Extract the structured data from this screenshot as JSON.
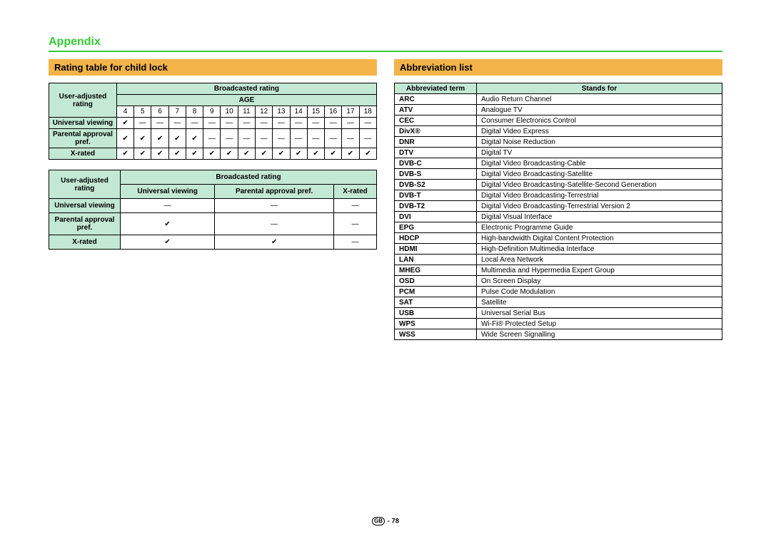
{
  "colors": {
    "accent_green": "#33cc33",
    "header_orange": "#f4b44a",
    "table_green": "#c3e8d3",
    "border": "#000000",
    "background": "#ffffff"
  },
  "appendix_title": "Appendix",
  "section_rating_title": "Rating table for child lock",
  "section_abbr_title": "Abbreviation list",
  "rating_table_age": {
    "user_adjusted_label": "User-adjusted rating",
    "broadcasted_label": "Broadcasted rating",
    "age_label": "AGE",
    "ages": [
      "4",
      "5",
      "6",
      "7",
      "8",
      "9",
      "10",
      "11",
      "12",
      "13",
      "14",
      "15",
      "16",
      "17",
      "18"
    ],
    "rows": [
      {
        "label": "Universal viewing",
        "cells": [
          "check",
          "dash",
          "dash",
          "dash",
          "dash",
          "dash",
          "dash",
          "dash",
          "dash",
          "dash",
          "dash",
          "dash",
          "dash",
          "dash",
          "dash"
        ]
      },
      {
        "label": "Parental approval pref.",
        "cells": [
          "check",
          "check",
          "check",
          "check",
          "check",
          "dash",
          "dash",
          "dash",
          "dash",
          "dash",
          "dash",
          "dash",
          "dash",
          "dash",
          "dash"
        ]
      },
      {
        "label": "X-rated",
        "cells": [
          "check",
          "check",
          "check",
          "check",
          "check",
          "check",
          "check",
          "check",
          "check",
          "check",
          "check",
          "check",
          "check",
          "check",
          "check"
        ]
      }
    ]
  },
  "rating_table_cat": {
    "user_adjusted_label": "User-adjusted rating",
    "broadcasted_label": "Broadcasted rating",
    "col_headers": [
      "Universal viewing",
      "Parental approval pref.",
      "X-rated"
    ],
    "rows": [
      {
        "label": "Universal viewing",
        "cells": [
          "dash",
          "dash",
          "dash"
        ]
      },
      {
        "label": "Parental approval pref.",
        "cells": [
          "check",
          "dash",
          "dash"
        ]
      },
      {
        "label": "X-rated",
        "cells": [
          "check",
          "check",
          "dash"
        ]
      }
    ]
  },
  "abbr_table": {
    "header_term": "Abbreviated term",
    "header_stands": "Stands for",
    "rows": [
      [
        "ARC",
        "Audio Return Channel"
      ],
      [
        "ATV",
        "Analogue TV"
      ],
      [
        "CEC",
        "Consumer Electronics Control"
      ],
      [
        "DivX®",
        "Digital Video Express"
      ],
      [
        "DNR",
        "Digital Noise Reduction"
      ],
      [
        "DTV",
        "Digital TV"
      ],
      [
        "DVB-C",
        "Digital Video Broadcasting-Cable"
      ],
      [
        "DVB-S",
        "Digital Video Broadcasting-Satellite"
      ],
      [
        "DVB-S2",
        "Digital Video Broadcasting-Satellite-Second Generation"
      ],
      [
        "DVB-T",
        "Digital Video Broadcasting-Terrestrial"
      ],
      [
        "DVB-T2",
        "Digital Video Broadcasting-Terrestrial Version 2"
      ],
      [
        "DVI",
        "Digital Visual Interface"
      ],
      [
        "EPG",
        "Electronic Programme Guide"
      ],
      [
        "HDCP",
        "High-bandwidth Digital Content Protection"
      ],
      [
        "HDMI",
        "High-Definition Multimedia Interface"
      ],
      [
        "LAN",
        "Local Area Network"
      ],
      [
        "MHEG",
        "Multimedia and Hypermedia Expert Group"
      ],
      [
        "OSD",
        "On Screen Display"
      ],
      [
        "PCM",
        "Pulse Code Modulation"
      ],
      [
        "SAT",
        "Satellite"
      ],
      [
        "USB",
        "Universal Serial Bus"
      ],
      [
        "WPS",
        "Wi-Fi® Protected Setup"
      ],
      [
        "WSS",
        "Wide Screen Signalling"
      ]
    ]
  },
  "footer": {
    "badge": "GB",
    "sep": " - ",
    "page": "78"
  }
}
